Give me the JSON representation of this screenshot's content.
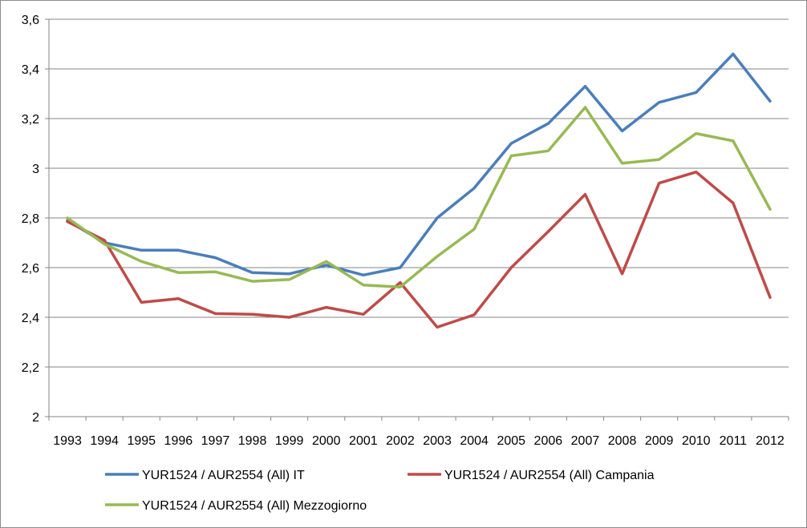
{
  "chart_data": {
    "type": "line",
    "categories": [
      "1993",
      "1994",
      "1995",
      "1996",
      "1997",
      "1998",
      "1999",
      "2000",
      "2001",
      "2002",
      "2003",
      "2004",
      "2005",
      "2006",
      "2007",
      "2008",
      "2009",
      "2010",
      "2011",
      "2012"
    ],
    "ylim": [
      2,
      3.6
    ],
    "yticks": [
      "2",
      "2,2",
      "2,4",
      "2,6",
      "2,8",
      "3",
      "3,2",
      "3,4",
      "3,6"
    ],
    "grid": true,
    "legend_position": "bottom",
    "series": [
      {
        "name": "YUR1524 / AUR2554 (All) IT",
        "color": "#4a7ebb",
        "values": [
          2.79,
          2.7,
          2.67,
          2.67,
          2.64,
          2.58,
          2.575,
          2.61,
          2.57,
          2.6,
          2.8,
          2.92,
          3.1,
          3.18,
          3.33,
          3.15,
          3.265,
          3.305,
          3.46,
          3.27
        ]
      },
      {
        "name": "YUR1524 / AUR2554 (All) Campania",
        "color": "#be4b48",
        "values": [
          2.785,
          2.71,
          2.46,
          2.475,
          2.415,
          2.412,
          2.4,
          2.44,
          2.412,
          2.54,
          2.36,
          2.41,
          2.6,
          2.745,
          2.895,
          2.575,
          2.94,
          2.985,
          2.86,
          2.48
        ]
      },
      {
        "name": "YUR1524 / AUR2554 (All) Mezzogiorno",
        "color": "#98b954",
        "values": [
          2.8,
          2.695,
          2.625,
          2.58,
          2.583,
          2.545,
          2.552,
          2.625,
          2.53,
          2.522,
          2.645,
          2.755,
          3.05,
          3.07,
          3.245,
          3.02,
          3.035,
          3.14,
          3.11,
          2.835
        ]
      }
    ]
  }
}
